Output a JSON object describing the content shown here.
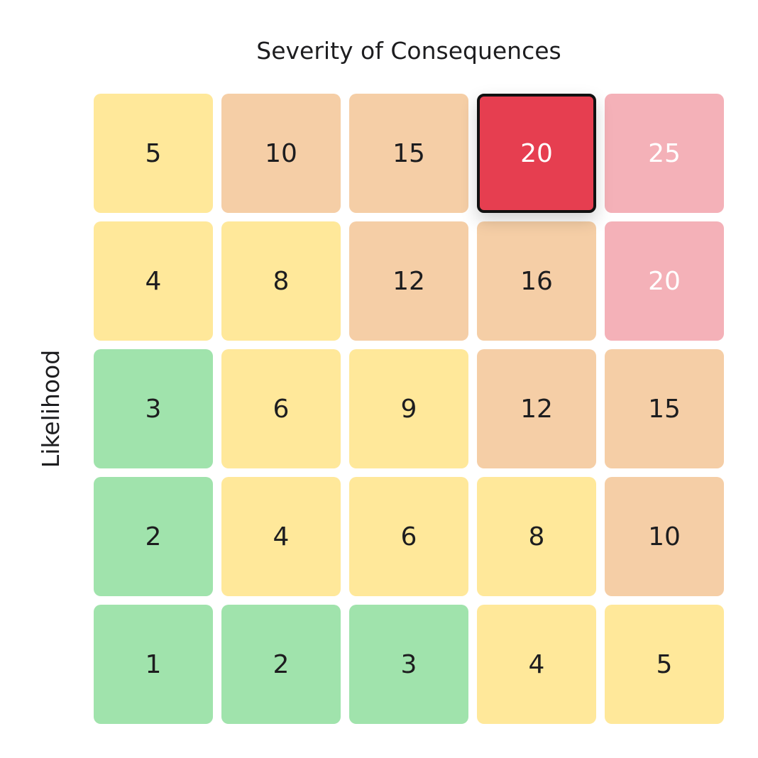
{
  "chart_data": {
    "type": "heatmap",
    "xlabel": "Severity of Consequences",
    "ylabel": "Likelihood",
    "rows": [
      [
        5,
        10,
        15,
        20,
        25
      ],
      [
        4,
        8,
        12,
        16,
        20
      ],
      [
        3,
        6,
        9,
        12,
        15
      ],
      [
        2,
        4,
        6,
        8,
        10
      ],
      [
        1,
        2,
        3,
        4,
        5
      ]
    ],
    "colors": {
      "low": "#a0e3ac",
      "medium": "#ffe89a",
      "high": "#f5cea6",
      "very_high": "#f4b1b8",
      "selected": "#e63e50"
    },
    "levels": [
      [
        "medium",
        "high",
        "high",
        "selected",
        "very_high"
      ],
      [
        "medium",
        "medium",
        "high",
        "high",
        "very_high"
      ],
      [
        "low",
        "medium",
        "medium",
        "high",
        "high"
      ],
      [
        "low",
        "medium",
        "medium",
        "medium",
        "high"
      ],
      [
        "low",
        "low",
        "low",
        "medium",
        "medium"
      ]
    ],
    "selected_cell": {
      "row": 0,
      "col": 3
    }
  }
}
